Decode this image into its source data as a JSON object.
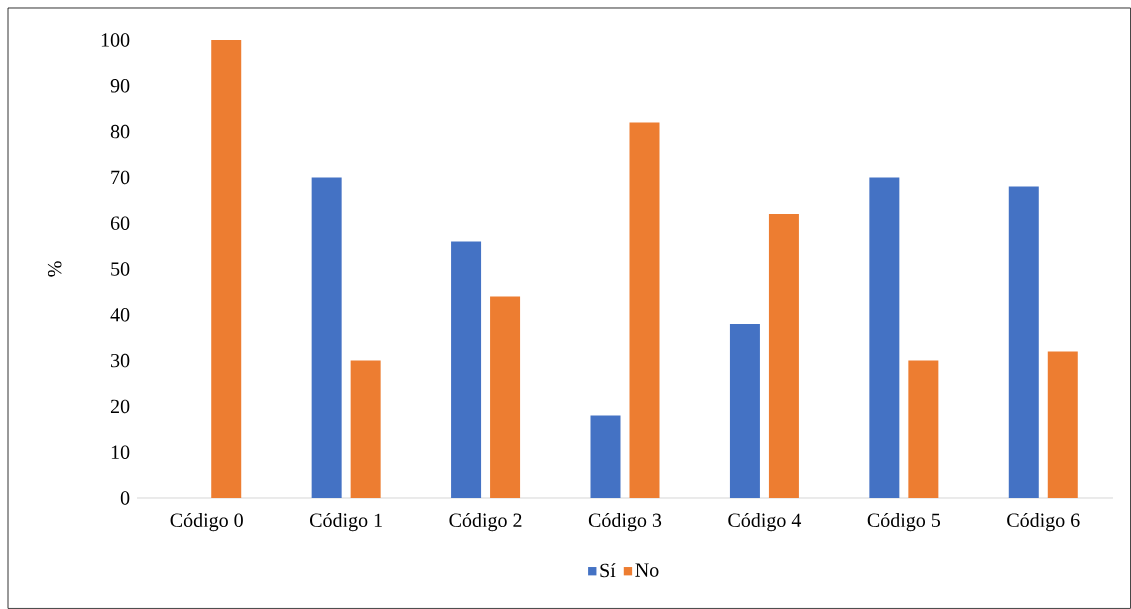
{
  "chart_data": {
    "type": "bar",
    "ylabel": "%",
    "categories": [
      "Código 0",
      "Código 1",
      "Código 2",
      "Código 3",
      "Código 4",
      "Código 5",
      "Código 6"
    ],
    "series": [
      {
        "name": "Sí",
        "color": "#4472c4",
        "values": [
          0,
          70,
          56,
          18,
          38,
          70,
          68
        ]
      },
      {
        "name": "No",
        "color": "#ed7d31",
        "values": [
          100,
          30,
          44,
          82,
          62,
          30,
          32
        ]
      }
    ],
    "ylim": [
      0,
      100
    ],
    "yticks": [
      0,
      10,
      20,
      30,
      40,
      50,
      60,
      70,
      80,
      90,
      100
    ],
    "legend": "bottom"
  }
}
